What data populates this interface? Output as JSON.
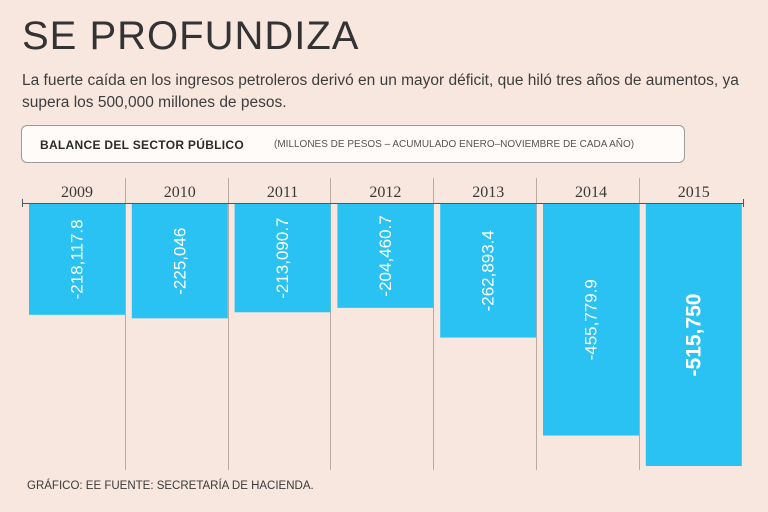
{
  "header": {
    "title": "SE PROFUNDIZA",
    "subtitle": "La fuerte caída en los ingresos petroleros derivó en un mayor déficit, que hiló tres años de aumentos, ya supera los 500,000 millones de pesos."
  },
  "legend_box": {
    "label": "BALANCE DEL SECTOR PÚBLICO",
    "note": "(MILLONES DE PESOS – ACUMULADO ENERO–NOVIEMBRE DE CADA AÑO)"
  },
  "footer": {
    "credit": "GRÁFICO: EE  FUENTE: SECRETARÍA DE HACIENDA."
  },
  "colors": {
    "bar": "#29c2f3",
    "background": "#f8e7de"
  },
  "chart_data": {
    "type": "bar",
    "title": "BALANCE DEL SECTOR PÚBLICO",
    "xlabel": "",
    "ylabel": "Millones de pesos",
    "categories": [
      "2009",
      "2010",
      "2011",
      "2012",
      "2013",
      "2014",
      "2015"
    ],
    "values": [
      -218117.8,
      -225046,
      -213090.7,
      -204460.7,
      -262893.4,
      -455779.9,
      -515750
    ],
    "labels": [
      "-218,117.8",
      "-225,046",
      "-213,090.7",
      "-204,460.7",
      "-262,893.4",
      "-455,779.9",
      "-515,750"
    ],
    "highlight_index": 6,
    "ylim": [
      -515750,
      0
    ]
  }
}
